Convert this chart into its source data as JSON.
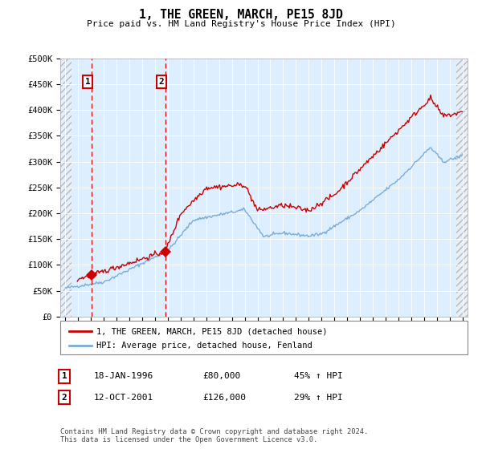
{
  "title": "1, THE GREEN, MARCH, PE15 8JD",
  "subtitle": "Price paid vs. HM Land Registry's House Price Index (HPI)",
  "legend_line1": "1, THE GREEN, MARCH, PE15 8JD (detached house)",
  "legend_line2": "HPI: Average price, detached house, Fenland",
  "sale1_date": "18-JAN-1996",
  "sale1_price": 80000,
  "sale1_pct": "45% ↑ HPI",
  "sale2_date": "12-OCT-2001",
  "sale2_price": 126000,
  "sale2_pct": "29% ↑ HPI",
  "footer": "Contains HM Land Registry data © Crown copyright and database right 2024.\nThis data is licensed under the Open Government Licence v3.0.",
  "ylim": [
    0,
    500000
  ],
  "yticks": [
    0,
    50000,
    100000,
    150000,
    200000,
    250000,
    300000,
    350000,
    400000,
    450000,
    500000
  ],
  "ylabels": [
    "£0",
    "£50K",
    "£100K",
    "£150K",
    "£200K",
    "£250K",
    "£300K",
    "£350K",
    "£400K",
    "£450K",
    "£500K"
  ],
  "sale1_x": 1996.05,
  "sale2_x": 2001.79,
  "xlim_left": 1993.6,
  "xlim_right": 2025.4,
  "hatch_left_end": 1994.5,
  "hatch_right_start": 2024.5,
  "red_color": "#cc0000",
  "blue_color": "#7aadda",
  "chart_bg": "#ddeeff",
  "hatch_face": "#e8eef4",
  "hatch_edge": "#aabbcc"
}
